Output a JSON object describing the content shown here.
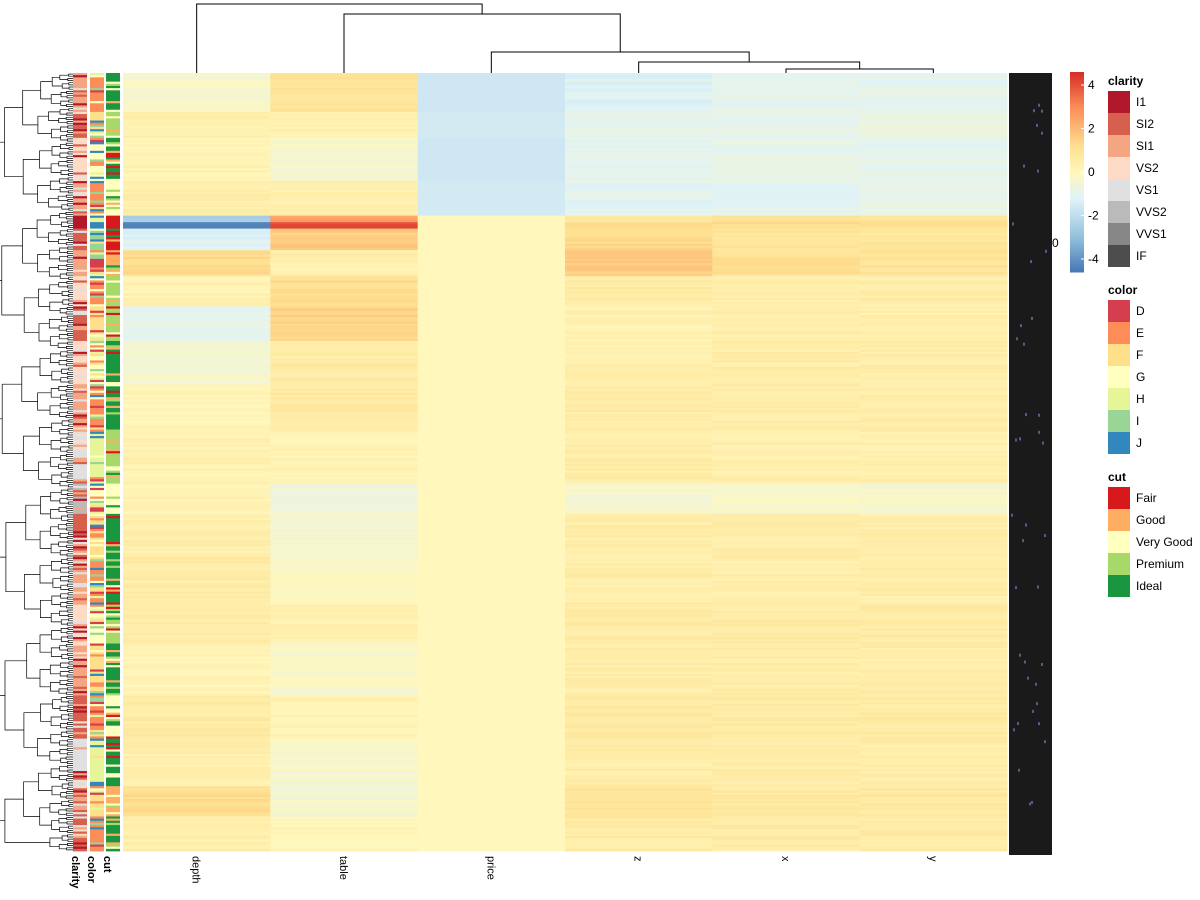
{
  "chart_data": {
    "type": "heatmap",
    "title": "",
    "columns": [
      "depth",
      "table",
      "price",
      "z",
      "x",
      "y"
    ],
    "column_dendrogram_order": [
      "depth",
      "table",
      "price",
      "z",
      "x",
      "y"
    ],
    "row_annotation_tracks": [
      "clarity",
      "color",
      "cut"
    ],
    "colorbar": {
      "ticks": [
        4,
        2,
        0,
        -2,
        -4
      ],
      "range": [
        -4.6,
        4.6
      ],
      "colors": [
        "#4575B4",
        "#91BFDB",
        "#E0F3F8",
        "#FFFFBF",
        "#FEE090",
        "#FC8D59",
        "#D73027"
      ]
    },
    "row_blocks": [
      {
        "rows": 18,
        "values": [
          -0.3,
          1.0,
          -1.6,
          -1.2,
          -1.0,
          -1.0
        ],
        "cut": "Ideal",
        "color": "E",
        "clarity": "SI1"
      },
      {
        "rows": 12,
        "values": [
          0.4,
          0.3,
          -1.5,
          -0.9,
          -0.9,
          -0.8
        ],
        "cut": "Premium",
        "color": "F",
        "clarity": "SI2"
      },
      {
        "rows": 20,
        "values": [
          0.2,
          -0.3,
          -1.6,
          -1.0,
          -0.9,
          -0.9
        ],
        "cut": "Ideal",
        "color": "G",
        "clarity": "VS2"
      },
      {
        "rows": 16,
        "values": [
          0.5,
          0.4,
          -1.5,
          -1.1,
          -1.0,
          -0.9
        ],
        "cut": "Very Good",
        "color": "E",
        "clarity": "SI1"
      },
      {
        "rows": 3,
        "values": [
          -2.6,
          2.6,
          0.0,
          0.9,
          1.0,
          0.9
        ],
        "cut": "Fair",
        "color": "H",
        "clarity": "I1"
      },
      {
        "rows": 3,
        "values": [
          -4.4,
          4.2,
          0.0,
          1.4,
          1.2,
          1.1
        ],
        "cut": "Fair",
        "color": "J",
        "clarity": "I1"
      },
      {
        "rows": 10,
        "values": [
          -1.2,
          1.6,
          0.0,
          1.3,
          0.9,
          0.8
        ],
        "cut": "Fair",
        "color": "I",
        "clarity": "SI2"
      },
      {
        "rows": 12,
        "values": [
          1.3,
          0.4,
          0.0,
          1.6,
          1.1,
          1.0
        ],
        "cut": "Good",
        "color": "D",
        "clarity": "SI1"
      },
      {
        "rows": 14,
        "values": [
          0.3,
          1.2,
          0.0,
          0.6,
          0.5,
          0.5
        ],
        "cut": "Premium",
        "color": "E",
        "clarity": "VS2"
      },
      {
        "rows": 16,
        "values": [
          -0.9,
          1.5,
          0.0,
          0.3,
          0.4,
          0.4
        ],
        "cut": "Premium",
        "color": "F",
        "clarity": "SI2"
      },
      {
        "rows": 20,
        "values": [
          -0.4,
          0.6,
          0.0,
          0.4,
          0.5,
          0.5
        ],
        "cut": "Ideal",
        "color": "G",
        "clarity": "VS2"
      },
      {
        "rows": 22,
        "values": [
          0.1,
          0.7,
          0.0,
          0.5,
          0.5,
          0.5
        ],
        "cut": "Ideal",
        "color": "E",
        "clarity": "SI1"
      },
      {
        "rows": 24,
        "values": [
          0.3,
          0.2,
          0.0,
          0.5,
          0.4,
          0.4
        ],
        "cut": "Premium",
        "color": "H",
        "clarity": "VS1"
      },
      {
        "rows": 14,
        "values": [
          0.2,
          -0.6,
          0.0,
          -0.4,
          -0.3,
          -0.3
        ],
        "cut": "Very Good",
        "color": "G",
        "clarity": "VVS2"
      },
      {
        "rows": 20,
        "values": [
          0.4,
          -0.4,
          0.0,
          0.5,
          0.5,
          0.5
        ],
        "cut": "Ideal",
        "color": "F",
        "clarity": "SI2"
      },
      {
        "rows": 22,
        "values": [
          0.6,
          -0.1,
          0.0,
          0.5,
          0.5,
          0.5
        ],
        "cut": "Ideal",
        "color": "E",
        "clarity": "SI1"
      },
      {
        "rows": 18,
        "values": [
          0.5,
          0.3,
          0.0,
          0.6,
          0.6,
          0.6
        ],
        "cut": "Premium",
        "color": "G",
        "clarity": "VS2"
      },
      {
        "rows": 24,
        "values": [
          0.2,
          -0.2,
          0.0,
          0.5,
          0.5,
          0.5
        ],
        "cut": "Ideal",
        "color": "F",
        "clarity": "SI1"
      },
      {
        "rows": 20,
        "values": [
          0.6,
          0.2,
          0.0,
          0.7,
          0.6,
          0.6
        ],
        "cut": "Very Good",
        "color": "E",
        "clarity": "SI2"
      },
      {
        "rows": 22,
        "values": [
          0.4,
          -0.3,
          0.0,
          0.5,
          0.5,
          0.5
        ],
        "cut": "Ideal",
        "color": "H",
        "clarity": "VS1"
      },
      {
        "rows": 14,
        "values": [
          1.2,
          -0.4,
          0.0,
          0.9,
          0.7,
          0.7
        ],
        "cut": "Good",
        "color": "F",
        "clarity": "SI1"
      },
      {
        "rows": 16,
        "values": [
          0.5,
          0.1,
          0.0,
          0.6,
          0.6,
          0.6
        ],
        "cut": "Ideal",
        "color": "E",
        "clarity": "SI2"
      }
    ]
  },
  "legends": {
    "clarity": {
      "title": "clarity",
      "items": [
        {
          "label": "I1",
          "color": "#B2182B"
        },
        {
          "label": "SI2",
          "color": "#D6604D"
        },
        {
          "label": "SI1",
          "color": "#F4A582"
        },
        {
          "label": "VS2",
          "color": "#FDDBC7"
        },
        {
          "label": "VS1",
          "color": "#E0E0E0"
        },
        {
          "label": "VVS2",
          "color": "#BABABA"
        },
        {
          "label": "VVS1",
          "color": "#878787"
        },
        {
          "label": "IF",
          "color": "#4D4D4D"
        }
      ]
    },
    "color": {
      "title": "color",
      "items": [
        {
          "label": "D",
          "color": "#D53E4F"
        },
        {
          "label": "E",
          "color": "#FC8D59"
        },
        {
          "label": "F",
          "color": "#FEE08B"
        },
        {
          "label": "G",
          "color": "#FFFFBF"
        },
        {
          "label": "H",
          "color": "#E6F598"
        },
        {
          "label": "I",
          "color": "#99D594"
        },
        {
          "label": "J",
          "color": "#3288BD"
        }
      ]
    },
    "cut": {
      "title": "cut",
      "items": [
        {
          "label": "Fair",
          "color": "#D7191C"
        },
        {
          "label": "Good",
          "color": "#FDAE61"
        },
        {
          "label": "Very Good",
          "color": "#FFFFBF"
        },
        {
          "label": "Premium",
          "color": "#A6D96A"
        },
        {
          "label": "Ideal",
          "color": "#1A9641"
        }
      ]
    }
  },
  "right_edge_label": "0"
}
